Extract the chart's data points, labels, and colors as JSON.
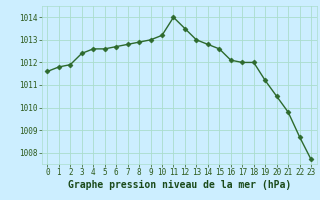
{
  "x": [
    0,
    1,
    2,
    3,
    4,
    5,
    6,
    7,
    8,
    9,
    10,
    11,
    12,
    13,
    14,
    15,
    16,
    17,
    18,
    19,
    20,
    21,
    22,
    23
  ],
  "y": [
    1011.6,
    1011.8,
    1011.9,
    1012.4,
    1012.6,
    1012.6,
    1012.7,
    1012.8,
    1012.9,
    1013.0,
    1013.2,
    1014.0,
    1013.5,
    1013.0,
    1012.8,
    1012.6,
    1012.1,
    1012.0,
    1012.0,
    1011.2,
    1010.5,
    1009.8,
    1008.7,
    1007.7
  ],
  "line_color": "#2d6a2d",
  "marker": "D",
  "markersize": 2.5,
  "linewidth": 1.0,
  "bg_color": "#cceeff",
  "grid_color": "#aaddcc",
  "title": "Graphe pression niveau de la mer (hPa)",
  "ylim": [
    1007.5,
    1014.5
  ],
  "yticks": [
    1008,
    1009,
    1010,
    1011,
    1012,
    1013,
    1014
  ],
  "xticks": [
    0,
    1,
    2,
    3,
    4,
    5,
    6,
    7,
    8,
    9,
    10,
    11,
    12,
    13,
    14,
    15,
    16,
    17,
    18,
    19,
    20,
    21,
    22,
    23
  ],
  "tick_color": "#2d5a1b",
  "tick_fontsize": 5.5,
  "title_fontsize": 7.0,
  "title_fontweight": "bold",
  "title_color": "#1a4a1a"
}
